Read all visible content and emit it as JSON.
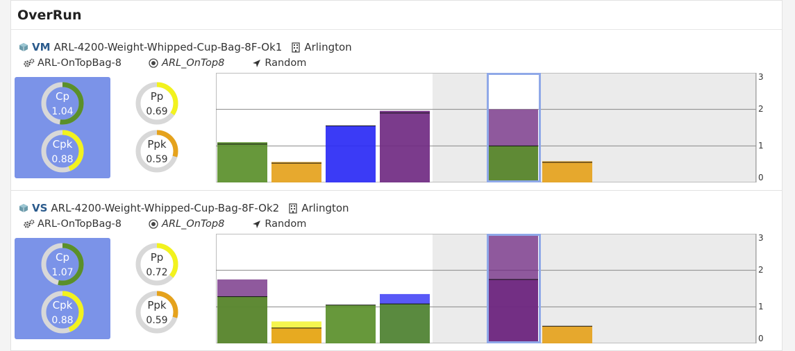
{
  "title": "OverRun",
  "colors": {
    "green": "#5a8f2a",
    "yellow": "#f2f21e",
    "orange": "#e5a21c",
    "blue": "#2a2af5",
    "purple": "#702a82",
    "track": "#d8d8d8",
    "box": "#7b93e8"
  },
  "sections": [
    {
      "type_label": "VM",
      "name": "ARL-4200-Weight-Whipped-Cup-Bag-8F-Ok1",
      "location": "Arlington",
      "machine": "ARL-OnTopBag-8",
      "recipe": "ARL_OnTop8",
      "mode": "Random",
      "icons": {
        "type": "cube-icon",
        "location": "building-icon",
        "machine": "gears-icon",
        "recipe": "target-icon",
        "mode": "location-arrow-icon"
      },
      "gauges": [
        {
          "key": "cp",
          "label": "Cp",
          "value": "1.04",
          "fraction": 0.52,
          "color": "green",
          "highlighted": true
        },
        {
          "key": "cpk",
          "label": "Cpk",
          "value": "0.88",
          "fraction": 0.44,
          "color": "yellow",
          "highlighted": true
        },
        {
          "key": "pp",
          "label": "Pp",
          "value": "0.69",
          "fraction": 0.345,
          "color": "yellow",
          "highlighted": false
        },
        {
          "key": "ppk",
          "label": "Ppk",
          "value": "0.59",
          "fraction": 0.295,
          "color": "orange",
          "highlighted": false
        }
      ],
      "chart_data": {
        "type": "bar",
        "yticks": [
          "3",
          "2",
          "1",
          "0"
        ],
        "ylim": [
          0,
          3
        ],
        "gridlines": [
          1,
          2
        ],
        "gray_band": [
          4,
          7
        ],
        "selected_slot": 5,
        "bars": [
          {
            "slot": 0,
            "value": 1.1,
            "color": "green",
            "line": 1.05,
            "overlay": null
          },
          {
            "slot": 1,
            "value": 0.56,
            "color": "orange",
            "line": 0.53,
            "overlay": null
          },
          {
            "slot": 2,
            "value": 1.55,
            "color": "blue",
            "line": 1.55,
            "overlay": null
          },
          {
            "slot": 3,
            "value": 1.96,
            "color": "purple",
            "line": 1.9,
            "overlay": null
          },
          {
            "slot": 5,
            "value": 2.0,
            "color": "purple",
            "line": 1.0,
            "overlay": {
              "value": 1.0,
              "color": "green"
            }
          },
          {
            "slot": 6,
            "value": 0.58,
            "color": "orange",
            "line": 0.55,
            "overlay": null
          }
        ]
      }
    },
    {
      "type_label": "VS",
      "name": "ARL-4200-Weight-Whipped-Cup-Bag-8F-Ok2",
      "location": "Arlington",
      "machine": "ARL-OnTopBag-8",
      "recipe": "ARL_OnTop8",
      "mode": "Random",
      "icons": {
        "type": "cube-icon",
        "location": "building-icon",
        "machine": "gears-icon",
        "recipe": "target-icon",
        "mode": "location-arrow-icon"
      },
      "gauges": [
        {
          "key": "cp",
          "label": "Cp",
          "value": "1.07",
          "fraction": 0.535,
          "color": "green",
          "highlighted": true
        },
        {
          "key": "cpk",
          "label": "Cpk",
          "value": "0.88",
          "fraction": 0.44,
          "color": "yellow",
          "highlighted": true
        },
        {
          "key": "pp",
          "label": "Pp",
          "value": "0.72",
          "fraction": 0.36,
          "color": "yellow",
          "highlighted": false
        },
        {
          "key": "ppk",
          "label": "Ppk",
          "value": "0.59",
          "fraction": 0.295,
          "color": "orange",
          "highlighted": false
        }
      ],
      "chart_data": {
        "type": "bar",
        "yticks": [
          "3",
          "2",
          "1",
          "0"
        ],
        "ylim": [
          0,
          3
        ],
        "gridlines": [
          1,
          2
        ],
        "gray_band": [
          4,
          7
        ],
        "selected_slot": 5,
        "bars": [
          {
            "slot": 0,
            "value": 1.75,
            "color": "purple",
            "line": 1.28,
            "overlay": {
              "value": 1.28,
              "color": "green"
            }
          },
          {
            "slot": 1,
            "value": 0.6,
            "color": "yellow",
            "line": 0.42,
            "overlay": {
              "value": 0.42,
              "color": "orange"
            }
          },
          {
            "slot": 2,
            "value": 1.05,
            "color": "green",
            "line": 1.05,
            "overlay": null
          },
          {
            "slot": 3,
            "value": 1.35,
            "color": "blue",
            "line": 1.08,
            "overlay": {
              "value": 1.08,
              "color": "green"
            }
          },
          {
            "slot": 5,
            "value": 2.95,
            "color": "purple",
            "line": 1.75,
            "overlay": {
              "value": 1.75,
              "color": "purple"
            }
          },
          {
            "slot": 6,
            "value": 0.47,
            "color": "orange",
            "line": 0.47,
            "overlay": null
          }
        ]
      }
    }
  ]
}
